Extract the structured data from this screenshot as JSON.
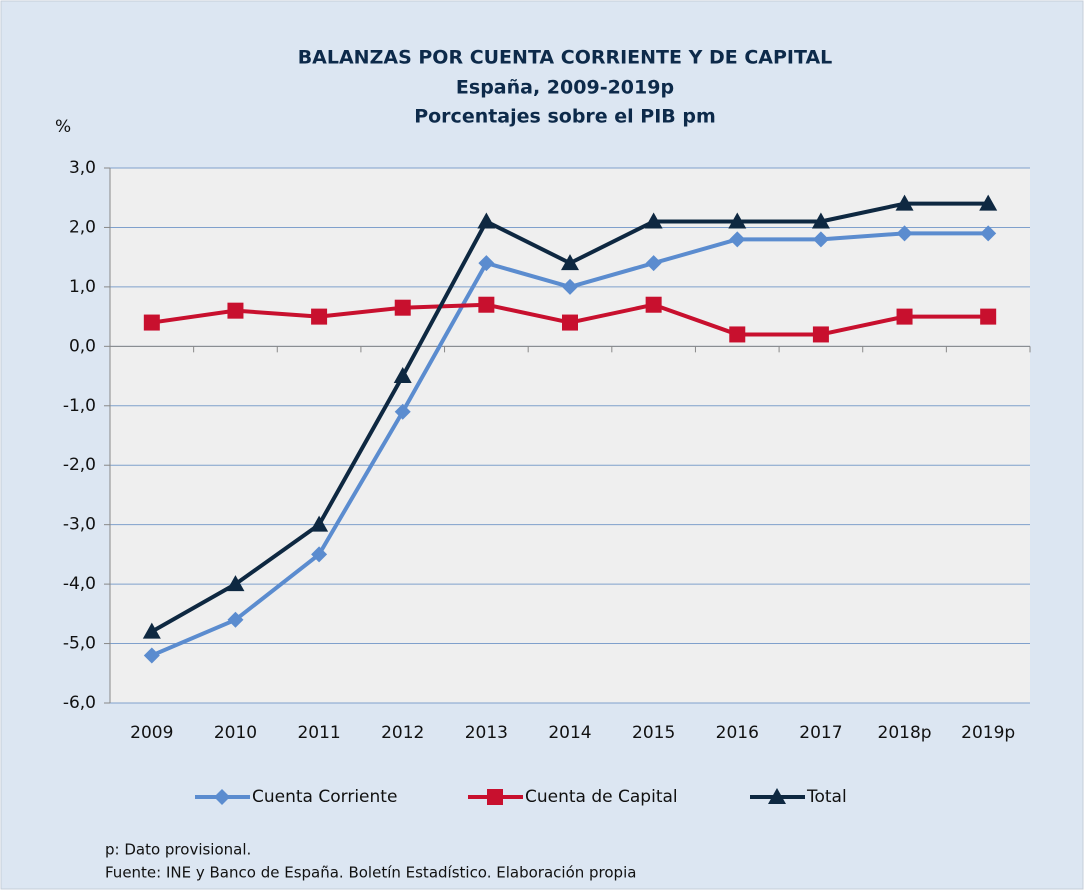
{
  "chart_data": {
    "type": "line",
    "title": "BALANZAS POR CUENTA CORRIENTE Y DE CAPITAL",
    "subtitle": [
      "España, 2009-2019p",
      "Porcentajes sobre el PIB pm"
    ],
    "y_label": "%",
    "categories": [
      "2009",
      "2010",
      "2011",
      "2012",
      "2013",
      "2014",
      "2015",
      "2016",
      "2017",
      "2018p",
      "2019p"
    ],
    "series": [
      {
        "name": "Cuenta Corriente",
        "color": "#5b8ccf",
        "marker": "diamond",
        "values": [
          -5.2,
          -4.6,
          -3.5,
          -1.1,
          1.4,
          1.0,
          1.4,
          1.8,
          1.8,
          1.9,
          1.9
        ]
      },
      {
        "name": "Cuenta de Capital",
        "color": "#c8102e",
        "marker": "square",
        "values": [
          0.4,
          0.6,
          0.5,
          0.65,
          0.7,
          0.4,
          0.7,
          0.2,
          0.2,
          0.5,
          0.5
        ]
      },
      {
        "name": "Total",
        "color": "#0e2841",
        "marker": "triangle",
        "values": [
          -4.8,
          -4.0,
          -3.0,
          -0.5,
          2.1,
          1.4,
          2.1,
          2.1,
          2.1,
          2.4,
          2.4
        ]
      }
    ],
    "ylim": [
      -6,
      3
    ],
    "yticks": [
      {
        "value": 3,
        "label": "3,0"
      },
      {
        "value": 2,
        "label": "2,0"
      },
      {
        "value": 1,
        "label": "1,0"
      },
      {
        "value": 0,
        "label": "0,0"
      },
      {
        "value": -1,
        "label": "-1,0"
      },
      {
        "value": -2,
        "label": "-2,0"
      },
      {
        "value": -3,
        "label": "-3,0"
      },
      {
        "value": -4,
        "label": "-4,0"
      },
      {
        "value": -5,
        "label": "-5,0"
      },
      {
        "value": -6,
        "label": "-6,0"
      }
    ],
    "grid": true,
    "notes": [
      "p: Dato provisional.",
      "Fuente: INE y Banco de España. Boletín Estadístico. Elaboración propia"
    ]
  }
}
